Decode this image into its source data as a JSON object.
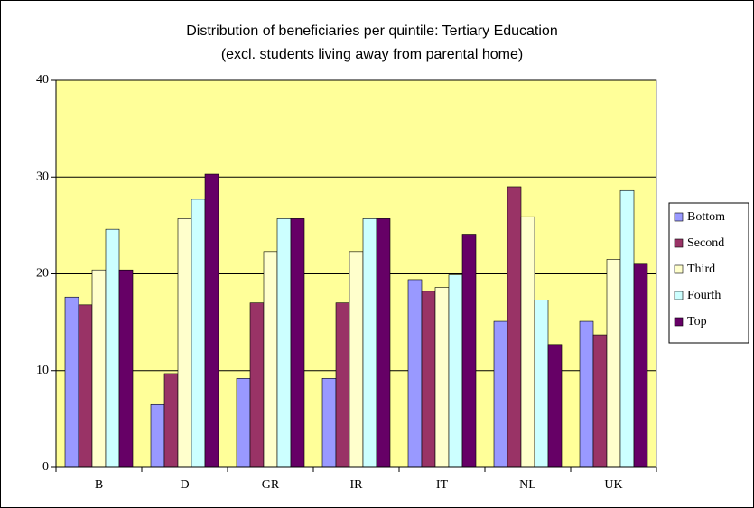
{
  "chart_data": {
    "type": "bar",
    "title": "Distribution of beneficiaries per quintile: Tertiary Education",
    "subtitle": "(excl. students living away from parental home)",
    "categories": [
      "B",
      "D",
      "GR",
      "IR",
      "IT",
      "NL",
      "UK"
    ],
    "series": [
      {
        "name": "Bottom",
        "color": "#9999ff",
        "values": [
          17.6,
          6.5,
          9.2,
          9.2,
          19.4,
          15.1,
          15.1
        ]
      },
      {
        "name": "Second",
        "color": "#993366",
        "values": [
          16.8,
          9.7,
          17.0,
          17.0,
          18.2,
          29.0,
          13.7
        ]
      },
      {
        "name": "Third",
        "color": "#ffffcc",
        "values": [
          20.4,
          25.7,
          22.3,
          22.3,
          18.6,
          25.9,
          21.5
        ]
      },
      {
        "name": "Fourth",
        "color": "#ccffff",
        "values": [
          24.6,
          27.7,
          25.7,
          25.7,
          19.9,
          17.3,
          28.6
        ]
      },
      {
        "name": "Top",
        "color": "#660066",
        "values": [
          20.4,
          30.3,
          25.7,
          25.7,
          24.1,
          12.7,
          21.0
        ]
      }
    ],
    "ylim": [
      0,
      40
    ],
    "yticks": [
      0,
      10,
      20,
      30,
      40
    ],
    "grid": true,
    "plot_background": "#ffff99",
    "legend": "right"
  }
}
